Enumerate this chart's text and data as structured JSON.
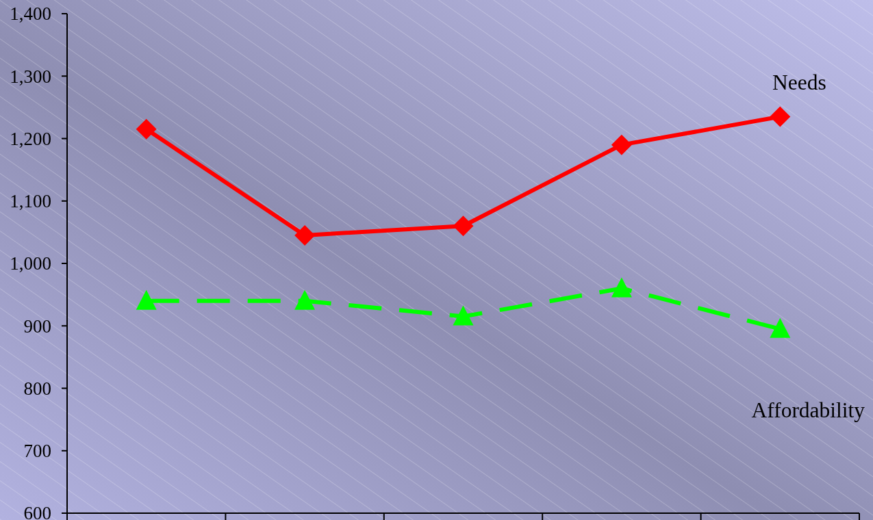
{
  "chart_data": {
    "type": "line",
    "categories": [
      null,
      null,
      null,
      null,
      null
    ],
    "series": [
      {
        "name": "Needs",
        "color": "#ff0000",
        "values": [
          1215,
          1045,
          1060,
          1190,
          1235
        ],
        "marker": "diamond",
        "line_style": "solid"
      },
      {
        "name": "Affordability",
        "color": "#00ff00",
        "values": [
          940,
          940,
          915,
          960,
          895
        ],
        "marker": "triangle",
        "line_style": "dashed"
      }
    ],
    "ylim": [
      600,
      1400
    ],
    "yticks": [
      600,
      700,
      800,
      900,
      {
        "value": 1000,
        "label": "1,000"
      },
      {
        "value": 1100,
        "label": "1,100"
      },
      {
        "value": 1200,
        "label": "1,200"
      },
      {
        "value": 1300,
        "label": "1,300"
      },
      {
        "value": 1400,
        "label": "1,400"
      }
    ],
    "tick_labels": "y"
  }
}
